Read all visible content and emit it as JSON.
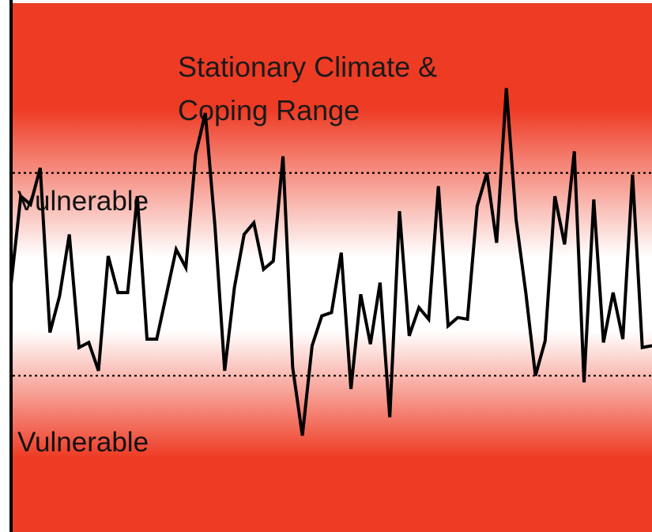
{
  "figure": {
    "title_lines": [
      "Stationary Climate &",
      "Coping Range"
    ],
    "upper_label": "Vulnerable",
    "lower_label": "Vulnerable",
    "colors": {
      "vulnerable_zone": "#ee3b24",
      "coping_zone": "#ffffff",
      "series_line": "#000000",
      "threshold_line": "#000000",
      "left_axis": "#000000"
    }
  },
  "chart_data": {
    "type": "line",
    "title": "Stationary Climate & Coping Range",
    "xlabel": "",
    "ylabel": "",
    "upper_threshold": 0.61,
    "lower_threshold": -0.61,
    "ylim": [
      -1.55,
      1.65
    ],
    "values": [
      -0.06,
      0.47,
      0.42,
      0.64,
      -0.35,
      -0.13,
      0.24,
      -0.44,
      -0.41,
      -0.58,
      0.11,
      -0.11,
      -0.11,
      0.47,
      -0.39,
      -0.39,
      -0.12,
      0.15,
      0.04,
      0.72,
      0.97,
      0.29,
      -0.58,
      -0.08,
      0.24,
      0.31,
      0.03,
      0.08,
      0.71,
      -0.56,
      -0.97,
      -0.43,
      -0.25,
      -0.23,
      0.13,
      -0.69,
      -0.12,
      -0.42,
      -0.05,
      -0.86,
      0.38,
      -0.37,
      -0.2,
      -0.27,
      0.53,
      -0.31,
      -0.26,
      -0.27,
      0.41,
      0.61,
      0.19,
      1.12,
      0.33,
      -0.11,
      -0.61,
      -0.4,
      0.47,
      0.18,
      0.74,
      -0.65,
      0.45,
      -0.41,
      -0.11,
      -0.39,
      0.6,
      -0.44,
      -0.43
    ]
  }
}
